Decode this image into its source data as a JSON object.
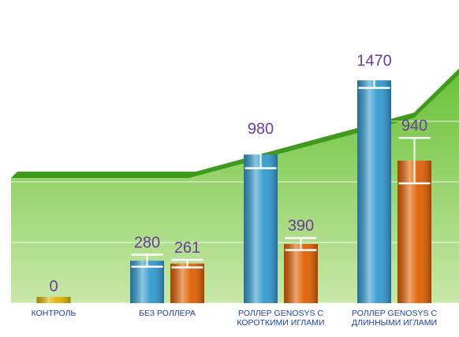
{
  "chart_data": {
    "type": "bar",
    "categories": [
      "КОНТРОЛЬ",
      "БЕЗ РОЛЛЕРА",
      "РОЛЛЕР GENOSYS С КОРОТКИМИ ИГЛАМИ",
      "РОЛЛЕР GENOSYS С ДЛИННЫМИ ИГЛАМИ"
    ],
    "series": [
      {
        "color": "#e0b000",
        "values": [
          0,
          null,
          null,
          null
        ],
        "errors": [
          0,
          null,
          null,
          null
        ]
      },
      {
        "color": "#2f9ad0",
        "values": [
          null,
          280,
          980,
          1470
        ],
        "errors": [
          null,
          40,
          90,
          50
        ]
      },
      {
        "color": "#e06000",
        "values": [
          null,
          261,
          390,
          940
        ],
        "errors": [
          null,
          25,
          40,
          150
        ]
      }
    ],
    "ylim": [
      0,
      2000
    ],
    "yticks": [
      0,
      400,
      800,
      1200,
      1600,
      2000
    ],
    "grid": true
  }
}
